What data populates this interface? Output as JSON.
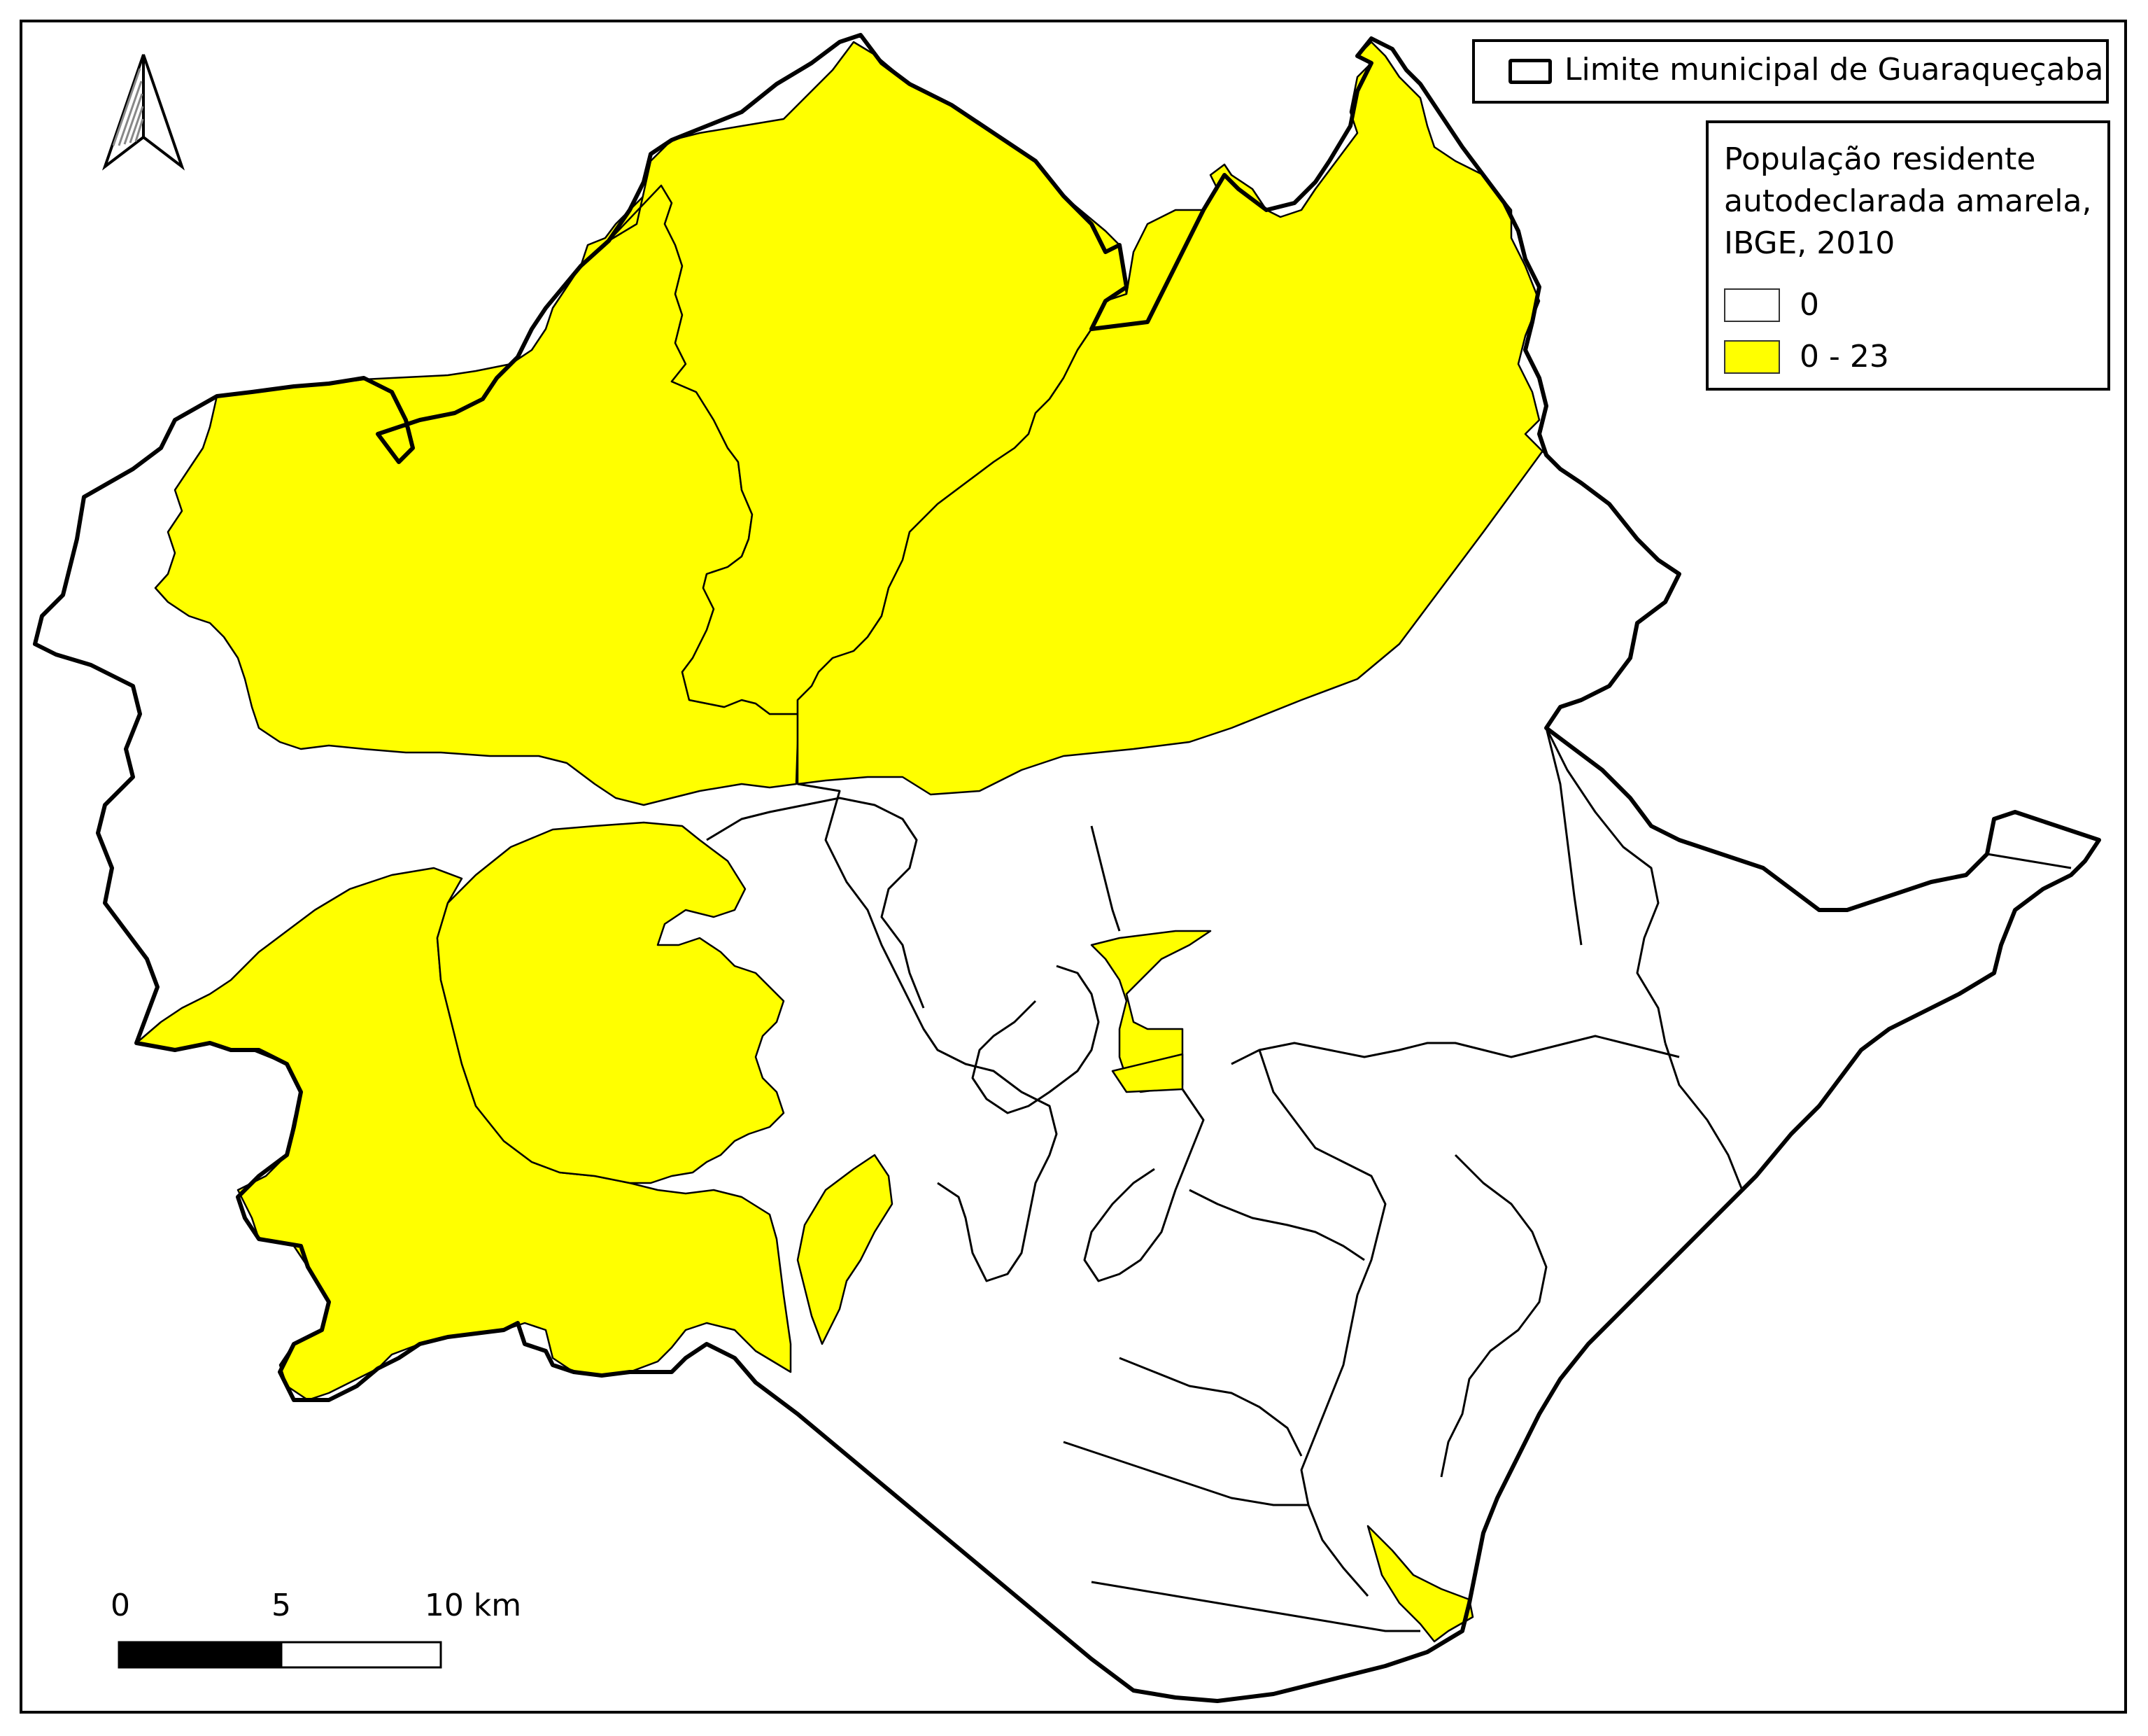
{
  "colors": {
    "zero": "#ffffff",
    "positive": "#ffff00",
    "boundary": "#000000"
  },
  "north_arrow": {
    "icon": "north-arrow-icon"
  },
  "legend": {
    "boundary_label": "Limite municipal de Guaraqueçaba",
    "title": "População residente autodeclarada amarela, IBGE, 2010",
    "classes": [
      {
        "label": "0",
        "color": "#ffffff"
      },
      {
        "label": "0 - 23",
        "color": "#ffff00"
      }
    ]
  },
  "scalebar": {
    "labels": [
      "0",
      "5",
      "10 km"
    ]
  }
}
